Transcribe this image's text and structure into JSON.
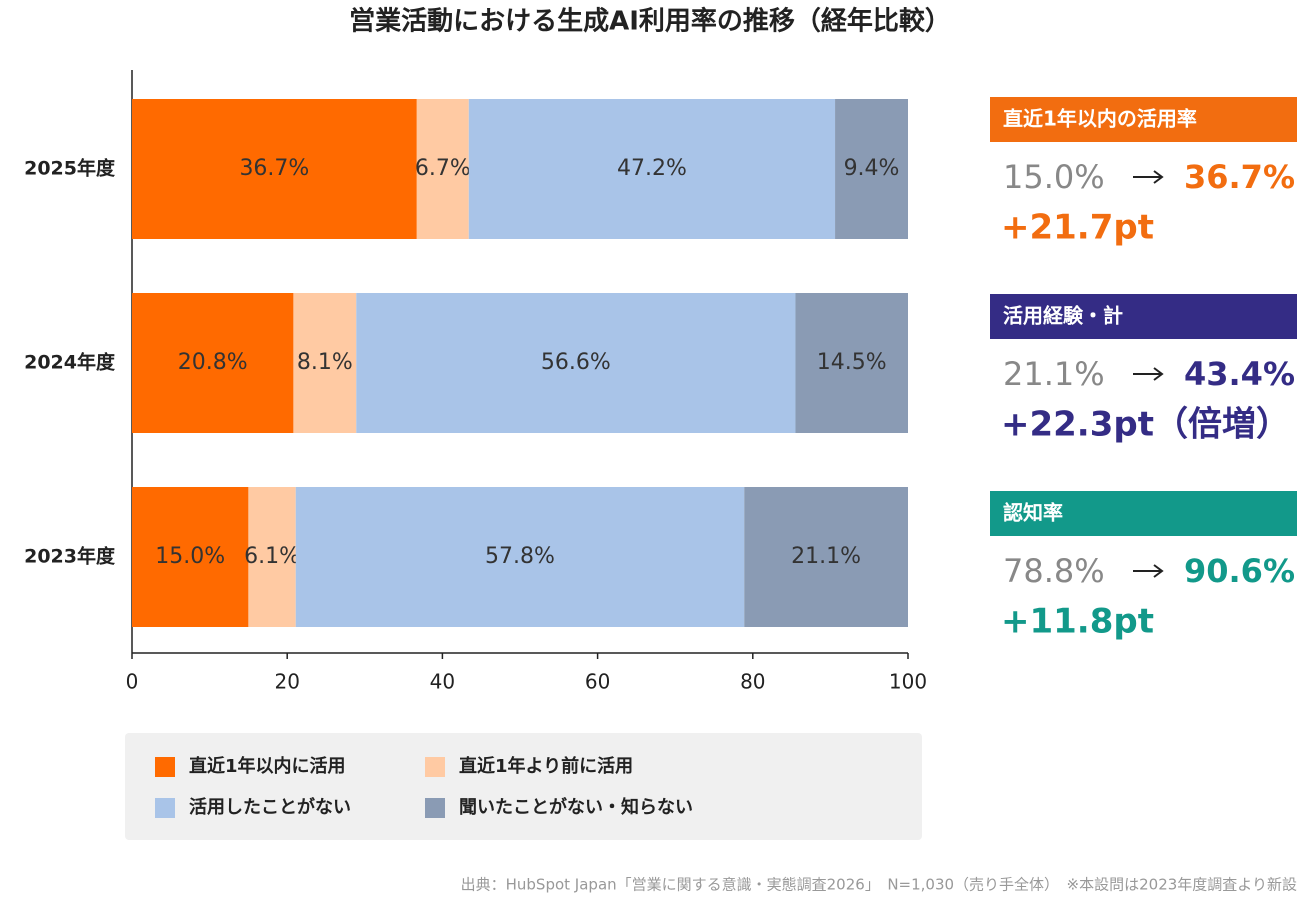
{
  "chart_data": {
    "type": "stacked-barh",
    "title": "営業活動における生成AI利用率の推移（経年比較）",
    "categories": [
      "2025年度",
      "2024年度",
      "2023年度"
    ],
    "series": [
      {
        "name": "直近1年以内に活用",
        "color": "#ff6a00",
        "values": [
          36.7,
          20.8,
          15.0
        ],
        "value_labels": [
          "36.7%",
          "20.8%",
          "15.0%"
        ]
      },
      {
        "name": "直近1年より前に活用",
        "color": "#ffcaa3",
        "values": [
          6.7,
          8.1,
          6.1
        ],
        "value_labels": [
          "6.7%",
          "8.1%",
          "6.1%"
        ]
      },
      {
        "name": "活用したことがない",
        "color": "#a9c4e8",
        "values": [
          47.2,
          56.6,
          57.8
        ],
        "value_labels": [
          "47.2%",
          "56.6%",
          "57.8%"
        ]
      },
      {
        "name": "聞いたことがない・知らない",
        "color": "#8a9bb4",
        "values": [
          9.4,
          14.5,
          21.1
        ],
        "value_labels": [
          "9.4%",
          "14.5%",
          "21.1%"
        ]
      }
    ],
    "xlim": [
      0,
      100
    ],
    "xticks": [
      0,
      20,
      40,
      60,
      80,
      100
    ],
    "grid": false,
    "legend": "bottom",
    "panels": [
      {
        "title": "直近1年以内の活用率",
        "from": "15.0%",
        "to": "36.7%",
        "change": "+21.7pt",
        "color": "#f26d10"
      },
      {
        "title": "活用経験・計",
        "from": "21.1%",
        "to": "43.4%",
        "change": "+22.3pt（倍増）",
        "color": "#342c85"
      },
      {
        "title": "認知率",
        "from": "78.8%",
        "to": "90.6%",
        "change": "+11.8pt",
        "color": "#12998a"
      }
    ],
    "source": "出典：HubSpot Japan「営業に関する意識・実態調査2026」　N=1,030（売り手全体）　※本設問は2023年度調査より新設"
  }
}
